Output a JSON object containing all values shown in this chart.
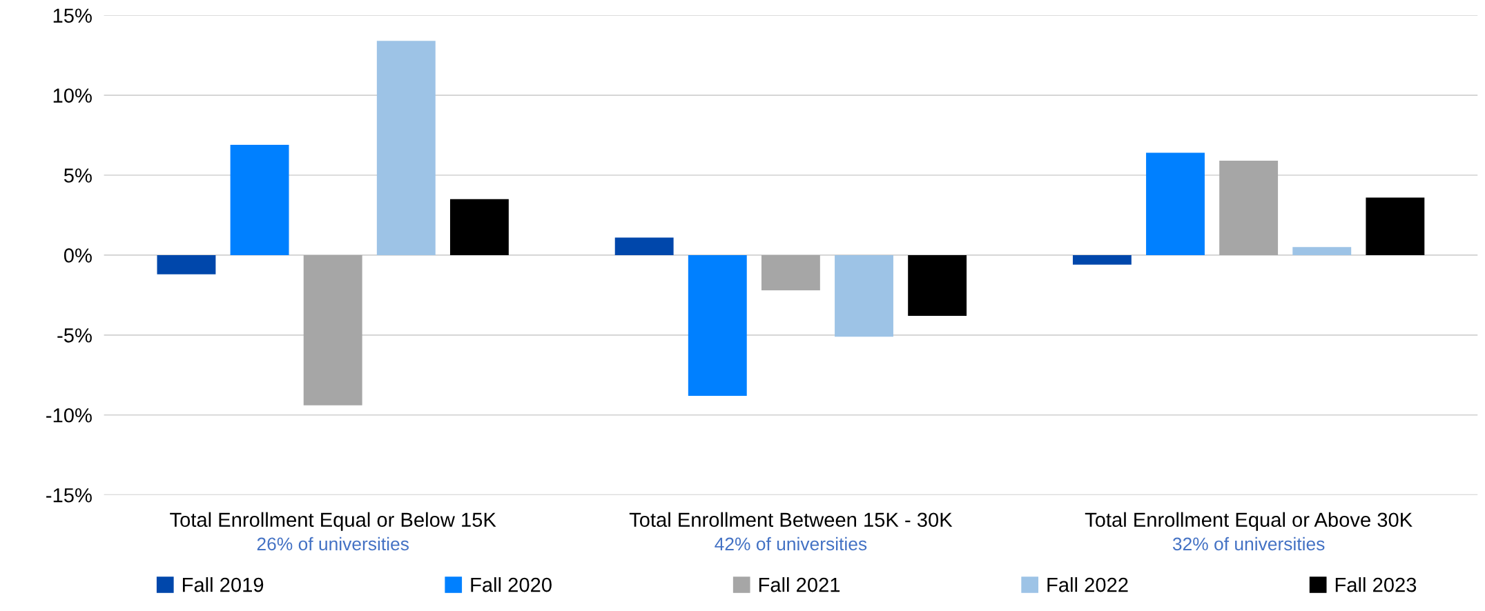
{
  "chart_data": {
    "type": "bar",
    "categories": [
      "Total Enrollment Equal or Below 15K",
      "Total Enrollment Between 15K - 30K",
      "Total Enrollment Equal or Above 30K"
    ],
    "series": [
      {
        "name": "Fall 2019",
        "color": "#0047ab",
        "values": [
          -1.2,
          1.1,
          -0.6
        ]
      },
      {
        "name": "Fall 2020",
        "color": "#0080ff",
        "values": [
          6.9,
          -8.8,
          6.4
        ]
      },
      {
        "name": "Fall 2021",
        "color": "#a6a6a6",
        "values": [
          -9.4,
          -2.2,
          5.9
        ]
      },
      {
        "name": "Fall 2022",
        "color": "#9dc3e6",
        "values": [
          13.4,
          -5.1,
          0.5
        ]
      },
      {
        "name": "Fall 2023",
        "color": "#000000",
        "values": [
          3.5,
          -3.8,
          3.6
        ]
      }
    ],
    "annotations": [
      "26% of universities",
      "42% of universities",
      "32% of universities"
    ],
    "ylim": [
      -15,
      15
    ],
    "yticks": [
      {
        "value": -15,
        "label": "-15%"
      },
      {
        "value": -10,
        "label": "-10%"
      },
      {
        "value": -5,
        "label": "-5%"
      },
      {
        "value": 0,
        "label": "0%"
      },
      {
        "value": 5,
        "label": "5%"
      },
      {
        "value": 10,
        "label": "10%"
      },
      {
        "value": 15,
        "label": "15%"
      }
    ],
    "grid": "y",
    "legend": "bottom"
  }
}
